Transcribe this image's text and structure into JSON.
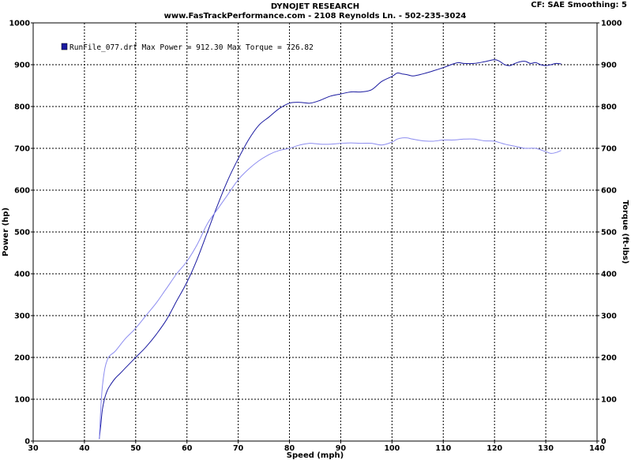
{
  "header": {
    "title": "DYNOJET RESEARCH",
    "subtitle": "www.FasTrackPerformance.com - 2108 Reynolds Ln. - 502-235-3024",
    "settings": "CF: SAE  Smoothing: 5"
  },
  "legend": {
    "text": "RunFile_077.drf Max Power = 912.30    Max Torque = 726.82"
  },
  "chart_data": {
    "type": "line",
    "xlabel": "Speed (mph)",
    "ylabel": "Power (hp)",
    "y2label": "Torque (ft-lbs)",
    "xlim": [
      30,
      140
    ],
    "ylim": [
      0,
      1000
    ],
    "y2lim": [
      0,
      1000
    ],
    "xticks": [
      "30",
      "40",
      "50",
      "60",
      "70",
      "80",
      "90",
      "100",
      "110",
      "120",
      "130",
      "140"
    ],
    "yticks": [
      "0",
      "100",
      "200",
      "300",
      "400",
      "500",
      "600",
      "700",
      "800",
      "900",
      "1000"
    ],
    "grid": true,
    "legend_position": "top-left",
    "colors": {
      "power": "#1a1aa0",
      "torque": "#8c8cf0"
    },
    "series": [
      {
        "key": "power",
        "x": [
          42.9,
          43.2,
          43.5,
          44,
          44.5,
          45,
          46,
          47,
          48,
          50,
          52,
          54,
          56,
          58,
          60,
          62,
          64,
          66,
          68,
          70,
          72,
          74,
          76,
          78,
          80,
          82,
          84,
          86,
          88,
          90,
          92,
          94,
          96,
          98,
          100,
          101,
          102,
          103,
          104,
          105,
          106,
          108,
          110,
          112,
          113,
          114,
          116,
          118,
          120,
          121,
          122,
          123,
          124,
          125,
          126,
          127,
          128,
          129,
          130,
          131,
          132,
          133
        ],
        "y": [
          5,
          40,
          75,
          105,
          122,
          133,
          150,
          162,
          175,
          200,
          225,
          255,
          290,
          335,
          380,
          435,
          500,
          565,
          625,
          675,
          720,
          755,
          775,
          795,
          808,
          810,
          808,
          815,
          825,
          830,
          835,
          835,
          840,
          860,
          872,
          880,
          878,
          876,
          873,
          875,
          878,
          885,
          893,
          902,
          905,
          903,
          903,
          907,
          912,
          908,
          900,
          898,
          903,
          907,
          908,
          903,
          905,
          900,
          898,
          900,
          903,
          902
        ]
      },
      {
        "key": "torque",
        "x": [
          42.9,
          43.2,
          43.5,
          44,
          44.5,
          45,
          46,
          48,
          50,
          52,
          54,
          56,
          58,
          60,
          62,
          64,
          66,
          68,
          70,
          72,
          74,
          76,
          78,
          80,
          82,
          84,
          86,
          88,
          90,
          92,
          94,
          96,
          98,
          100,
          101,
          102,
          103,
          104,
          106,
          108,
          110,
          112,
          114,
          116,
          118,
          120,
          122,
          124,
          126,
          128,
          130,
          131,
          132,
          133
        ],
        "y": [
          5,
          80,
          130,
          175,
          195,
          205,
          215,
          245,
          270,
          300,
          330,
          365,
          400,
          430,
          470,
          520,
          555,
          590,
          625,
          650,
          670,
          685,
          695,
          700,
          708,
          712,
          710,
          710,
          712,
          713,
          712,
          712,
          708,
          715,
          722,
          725,
          725,
          722,
          718,
          717,
          720,
          720,
          722,
          722,
          718,
          717,
          710,
          705,
          700,
          700,
          692,
          688,
          690,
          695
        ]
      }
    ]
  }
}
